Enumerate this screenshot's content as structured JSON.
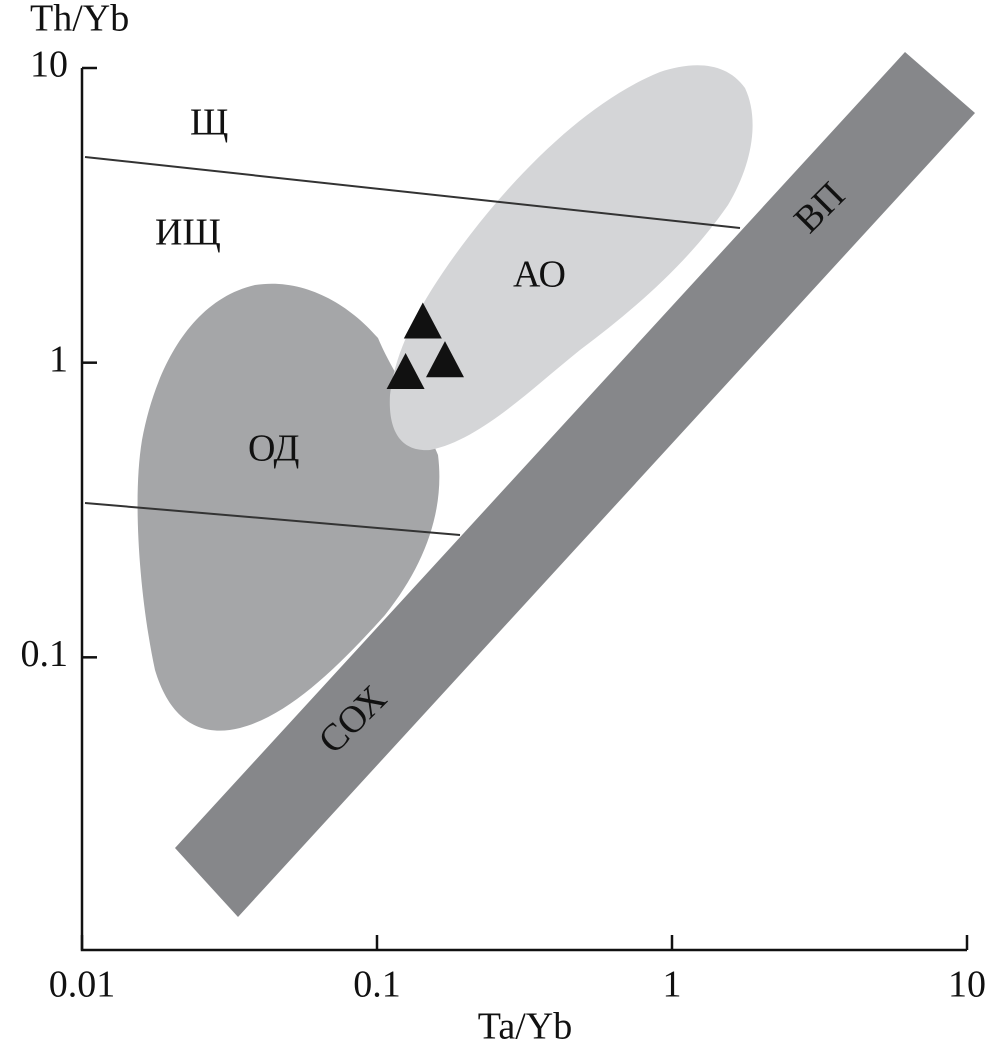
{
  "chart_data": {
    "type": "scatter",
    "x_label": "Ta/Yb",
    "y_label": "Th/Yb",
    "log_x": true,
    "log_y": true,
    "xlim": [
      0.01,
      10
    ],
    "ylim": [
      0.01,
      10
    ],
    "xticks": [
      0.01,
      0.1,
      1,
      10
    ],
    "yticks": [
      0.1,
      1,
      10
    ],
    "series": [
      {
        "marker": "triangle",
        "color": "#111111",
        "x": [
          0.143,
          0.17,
          0.125
        ],
        "values": [
          1.38,
          1.02,
          0.93
        ]
      }
    ],
    "annotations": [
      "Щ",
      "ИЩ",
      "ОД",
      "АО",
      "ВП",
      "СОХ"
    ]
  }
}
